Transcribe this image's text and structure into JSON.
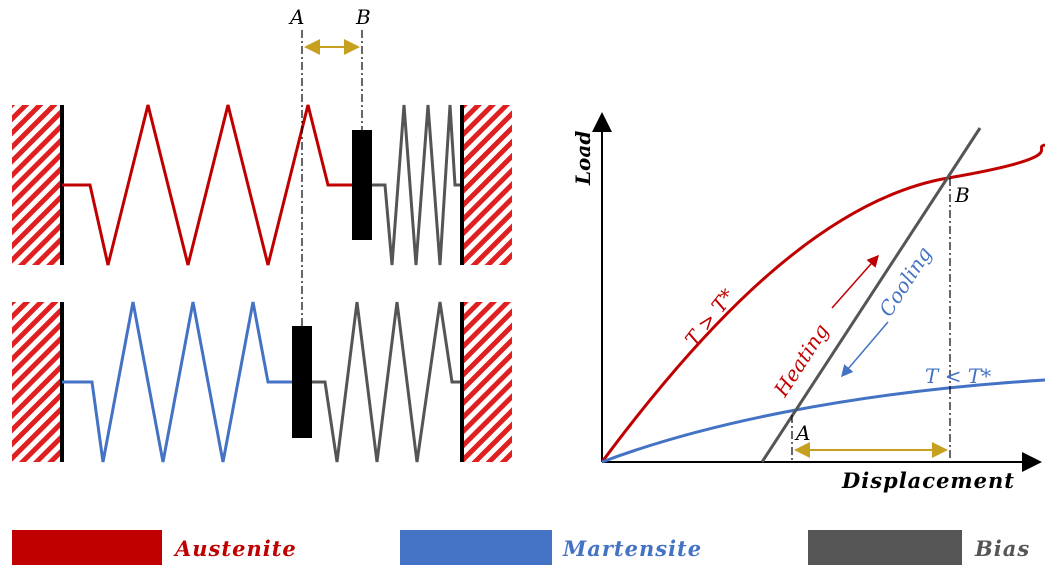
{
  "springs": {
    "label_a": "A",
    "label_b": "B"
  },
  "graph": {
    "y_label": "Load",
    "x_label": "Displacement",
    "point_a": "A",
    "point_b": "B",
    "curve_hot": "T > T*",
    "curve_cold": "T < T*",
    "heating": "Heating",
    "cooling": "Cooling"
  },
  "legend": [
    "Austenite",
    "Martensite",
    "Bias"
  ]
}
